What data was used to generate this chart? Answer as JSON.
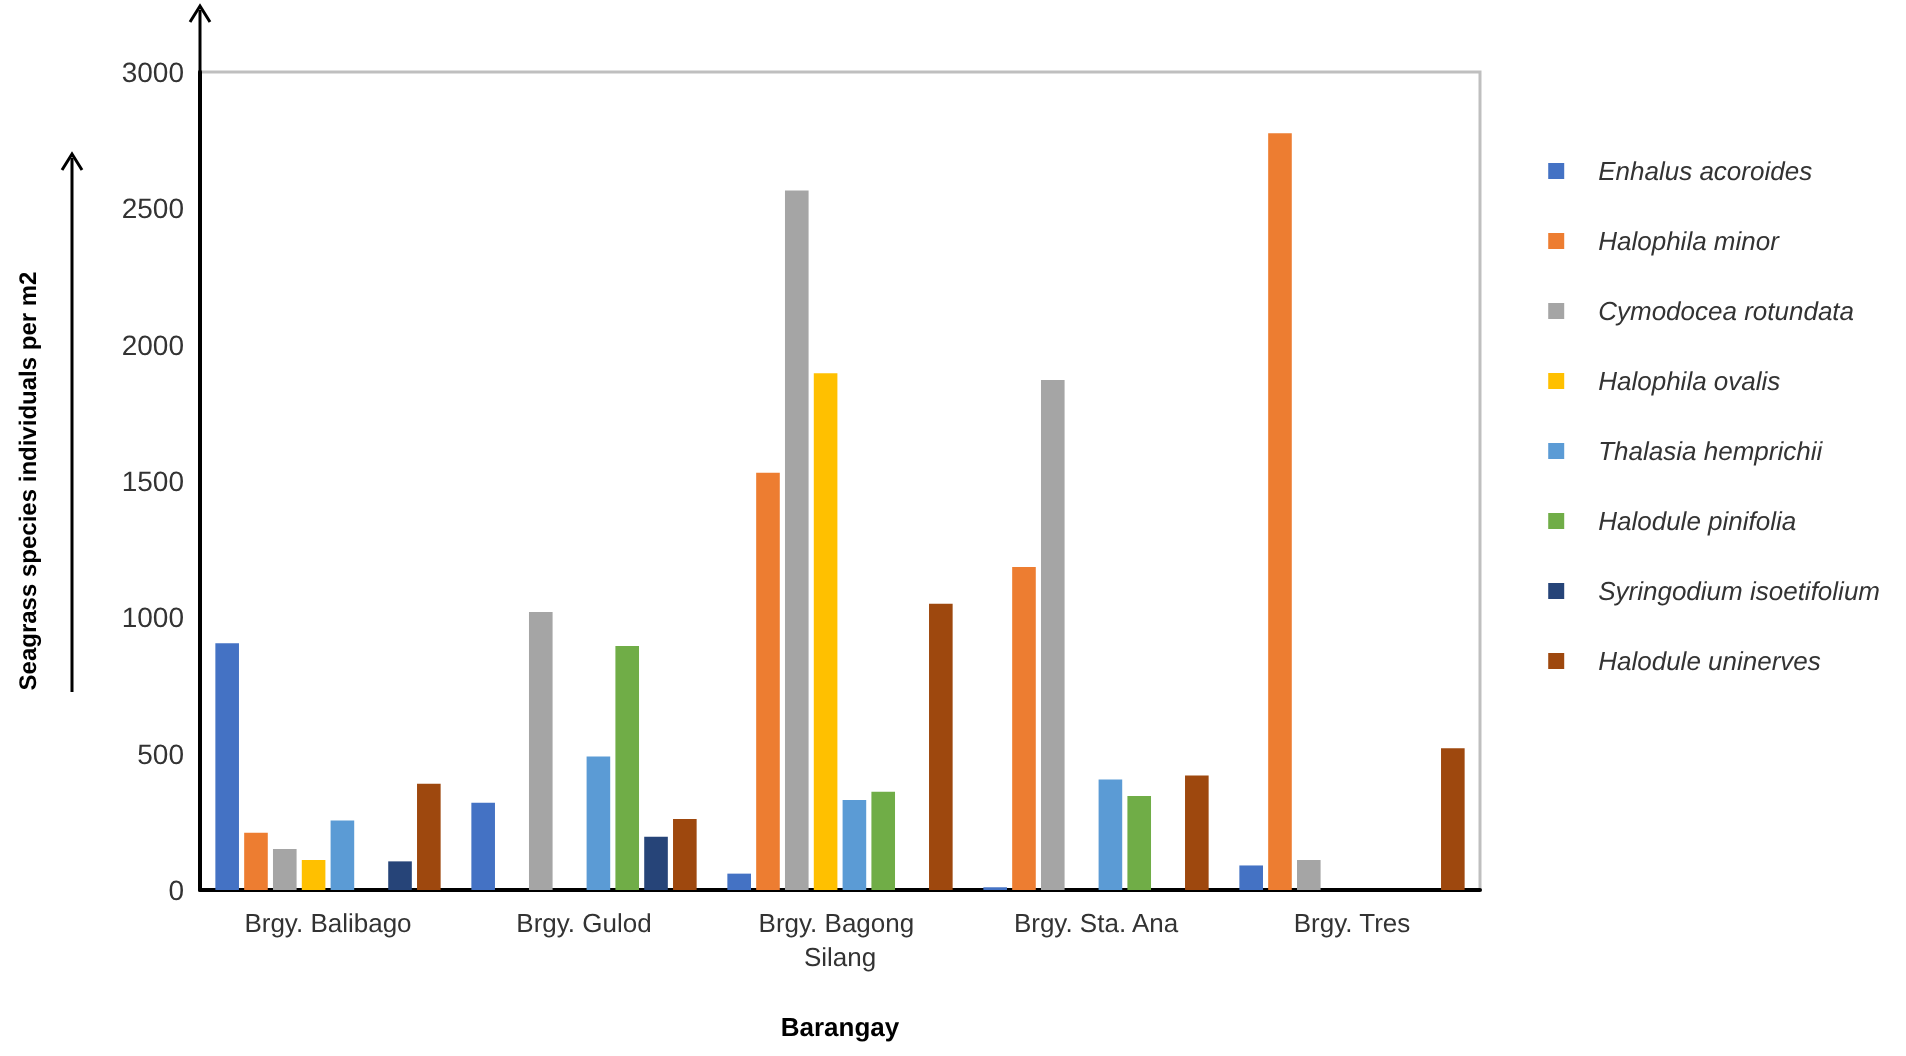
{
  "chart_data": {
    "type": "bar",
    "xlabel": "Barangay",
    "ylabel": "Seagrass species individuals per m2",
    "categories": [
      "Brgy. Balibago",
      "Brgy. Gulod",
      "Brgy. Bagong Silang",
      "Brgy. Sta. Ana",
      "Brgy. Tres"
    ],
    "series": [
      {
        "name": "Enhalus acoroides",
        "color": "#4472c4",
        "values": [
          905,
          320,
          60,
          10,
          90
        ]
      },
      {
        "name": "Halophila minor",
        "color": "#ed7d31",
        "values": [
          210,
          0,
          1530,
          1185,
          2775
        ]
      },
      {
        "name": "Cymodocea rotundata",
        "color": "#a5a5a5",
        "values": [
          150,
          1020,
          2565,
          1870,
          110
        ]
      },
      {
        "name": "Halophila ovalis",
        "color": "#ffc000",
        "values": [
          110,
          0,
          1895,
          0,
          0
        ]
      },
      {
        "name": "Thalasia hemprichii",
        "color": "#5b9bd5",
        "values": [
          255,
          490,
          330,
          405,
          0
        ]
      },
      {
        "name": "Halodule pinifolia",
        "color": "#70ad47",
        "values": [
          0,
          895,
          360,
          345,
          0
        ]
      },
      {
        "name": "Syringodium isoetifolium",
        "color": "#264478",
        "values": [
          105,
          195,
          0,
          0,
          0
        ]
      },
      {
        "name": "Halodule uninerves",
        "color": "#9e480e",
        "values": [
          390,
          260,
          1050,
          420,
          520
        ]
      }
    ],
    "ylim": [
      0,
      3000
    ],
    "yticks": [
      0,
      500,
      1000,
      1500,
      2000,
      2500,
      3000
    ],
    "grid": false,
    "legend": "right"
  }
}
